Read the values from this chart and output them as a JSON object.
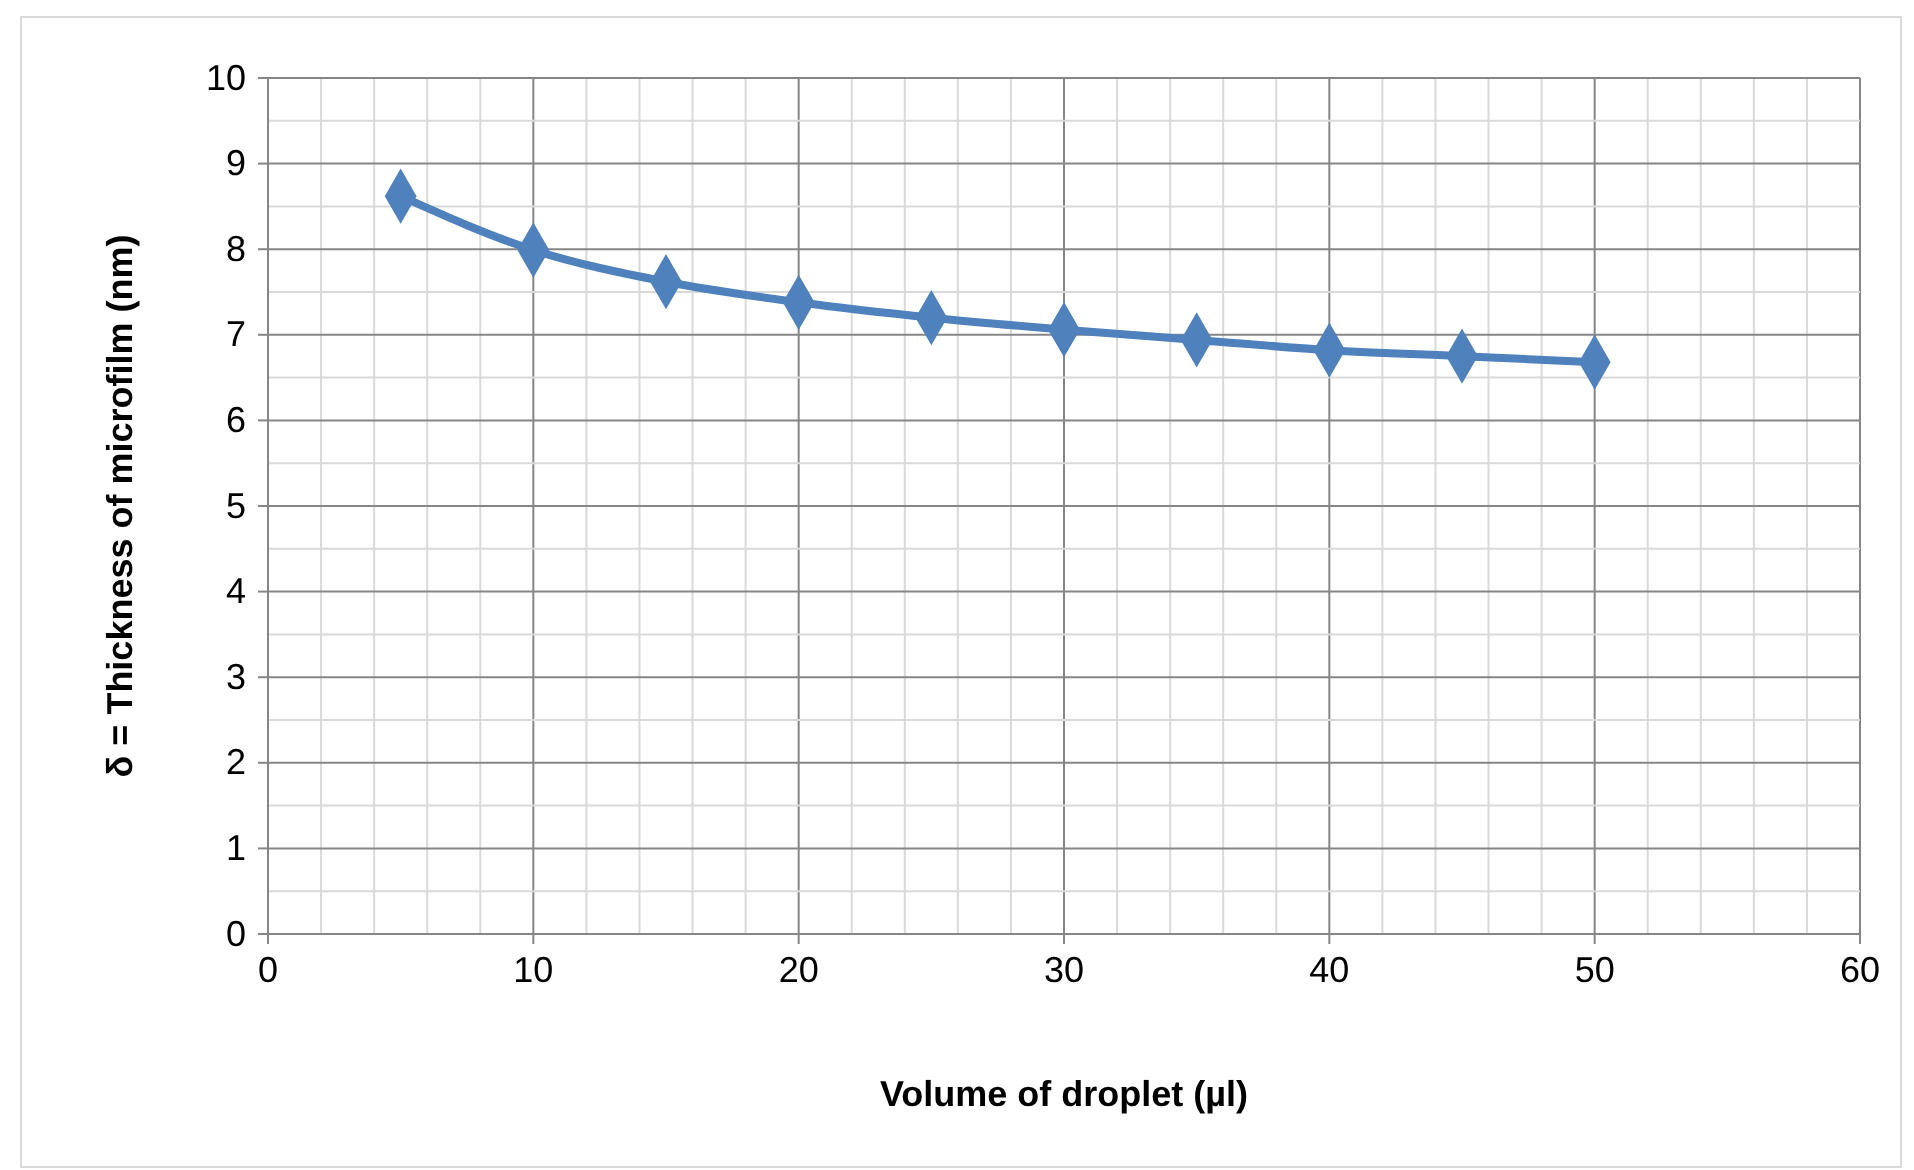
{
  "chart_data": {
    "type": "line",
    "xlabel": "Volume of droplet (µl)",
    "ylabel": "δ = Thickness of microfilm (nm)",
    "x": [
      5,
      10,
      15,
      20,
      25,
      30,
      35,
      40,
      45,
      50
    ],
    "series": [
      {
        "color": "#4f81bd",
        "values": [
          8.62,
          7.99,
          7.62,
          7.38,
          7.2,
          7.06,
          6.94,
          6.82,
          6.75,
          6.68
        ]
      }
    ],
    "xlim": [
      0,
      60
    ],
    "xticks": [
      0,
      {
        "value": 2,
        "label": null
      },
      {
        "value": 4,
        "label": null
      },
      {
        "value": 6,
        "label": null
      },
      {
        "value": 8,
        "label": null
      },
      10,
      {
        "value": 12,
        "label": null
      },
      {
        "value": 14,
        "label": null
      },
      {
        "value": 16,
        "label": null
      },
      {
        "value": 18,
        "label": null
      },
      20,
      {
        "value": 22,
        "label": null
      },
      {
        "value": 24,
        "label": null
      },
      {
        "value": 26,
        "label": null
      },
      {
        "value": 28,
        "label": null
      },
      30,
      {
        "value": 32,
        "label": null
      },
      {
        "value": 34,
        "label": null
      },
      {
        "value": 36,
        "label": null
      },
      {
        "value": 38,
        "label": null
      },
      40,
      {
        "value": 42,
        "label": null
      },
      {
        "value": 44,
        "label": null
      },
      {
        "value": 46,
        "label": null
      },
      {
        "value": 48,
        "label": null
      },
      50,
      {
        "value": 52,
        "label": null
      },
      {
        "value": 54,
        "label": null
      },
      {
        "value": 56,
        "label": null
      },
      {
        "value": 58,
        "label": null
      },
      60
    ],
    "ylim": [
      0,
      10
    ],
    "yticks": [
      0,
      {
        "value": 0.5,
        "label": null
      },
      1,
      {
        "value": 1.5,
        "label": null
      },
      2,
      {
        "value": 2.5,
        "label": null
      },
      3,
      {
        "value": 3.5,
        "label": null
      },
      4,
      {
        "value": 4.5,
        "label": null
      },
      5,
      {
        "value": 5.5,
        "label": null
      },
      6,
      {
        "value": 6.5,
        "label": null
      },
      7,
      {
        "value": 7.5,
        "label": null
      },
      8,
      {
        "value": 8.5,
        "label": null
      },
      9,
      {
        "value": 9.5,
        "label": null
      },
      10
    ],
    "grid": true,
    "marker": "diamond",
    "line_style": "solid"
  }
}
